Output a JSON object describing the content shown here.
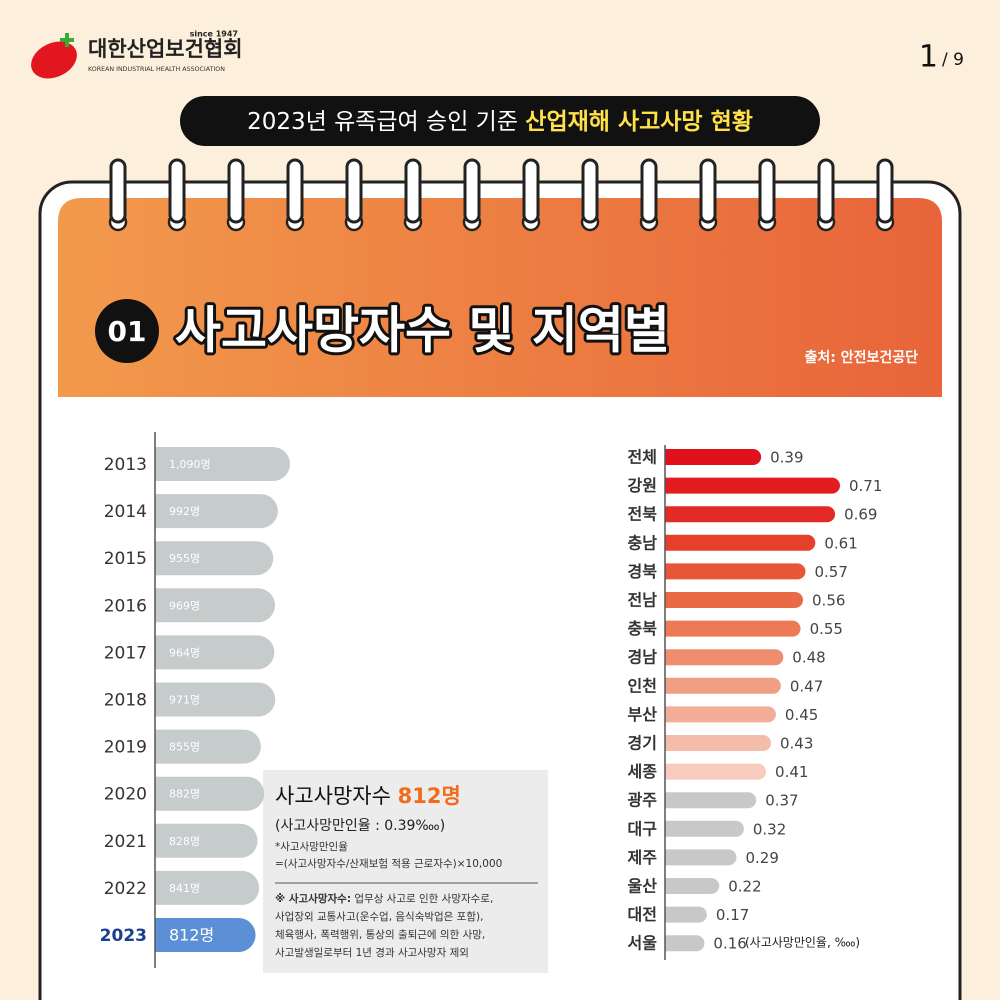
{
  "logo": {
    "name": "대한산업보건협회",
    "since": "since 1947",
    "english": "KOREAN INDUSTRIAL HEALTH ASSOCIATION"
  },
  "page": {
    "current": "1",
    "total": "/ 9"
  },
  "banner": {
    "text": "2023년 유족급여 승인 기준 ",
    "highlight": "산업재해 사고사망 현황"
  },
  "section": {
    "number": "01",
    "title": "사고사망자수 및 지역별",
    "source": "출처: 안전보건공단"
  },
  "note_box": {
    "title": "사고사망자수 ",
    "title_value": "812명",
    "subtitle": "(사고사망만인율 : 0.39‱)",
    "formula_label": "*사고사망만인율",
    "formula": "=(사고사망자수/산재보험 적용 근로자수)×10,000",
    "definition_label": "※ 사고사망자수:",
    "definition_lines": [
      " 업무상 사고로 인한 사망자수로,",
      "사업장외 교통사고(운수업, 음식숙박업은 포함),",
      "체육행사, 폭력행위, 통상의 출퇴근에 의한 사망,",
      "사고발생일로부터 1년 경과 사고사망자 제외"
    ]
  },
  "chart_data": [
    {
      "type": "bar",
      "categories": [
        "2013",
        "2014",
        "2015",
        "2016",
        "2017",
        "2018",
        "2019",
        "2020",
        "2021",
        "2022",
        "2023"
      ],
      "values": [
        1090,
        992,
        955,
        969,
        964,
        971,
        855,
        882,
        828,
        841,
        812
      ],
      "value_labels": [
        "1,090명",
        "992명",
        "955명",
        "969명",
        "964명",
        "971명",
        "855명",
        "882명",
        "828명",
        "841명",
        "812명"
      ],
      "colors": [
        "#c6cbcc",
        "#c6cbcc",
        "#c6cbcc",
        "#c6cbcc",
        "#c6cbcc",
        "#c6cbcc",
        "#c6cbcc",
        "#c6cbcc",
        "#c6cbcc",
        "#c6cbcc",
        "#5b8fd6"
      ]
    },
    {
      "type": "bar",
      "categories": [
        "전체",
        "강원",
        "전북",
        "충남",
        "경북",
        "전남",
        "충북",
        "경남",
        "인천",
        "부산",
        "경기",
        "세종",
        "광주",
        "대구",
        "제주",
        "울산",
        "대전",
        "서울"
      ],
      "values": [
        0.39,
        0.71,
        0.69,
        0.61,
        0.57,
        0.56,
        0.55,
        0.48,
        0.47,
        0.45,
        0.43,
        0.41,
        0.37,
        0.32,
        0.29,
        0.22,
        0.17,
        0.16
      ],
      "colors": [
        "#e0101c",
        "#e31c20",
        "#e42a24",
        "#e6402c",
        "#e85636",
        "#ea6a46",
        "#ec7a56",
        "#ee8e6e",
        "#f09e84",
        "#f2ae98",
        "#f4bcaa",
        "#f7cbbd",
        "#c8c8c8",
        "#c8c8c8",
        "#c8c8c8",
        "#c8c8c8",
        "#c8c8c8",
        "#c8c8c8"
      ],
      "note": "(사고사망만인율, ‱)"
    }
  ]
}
